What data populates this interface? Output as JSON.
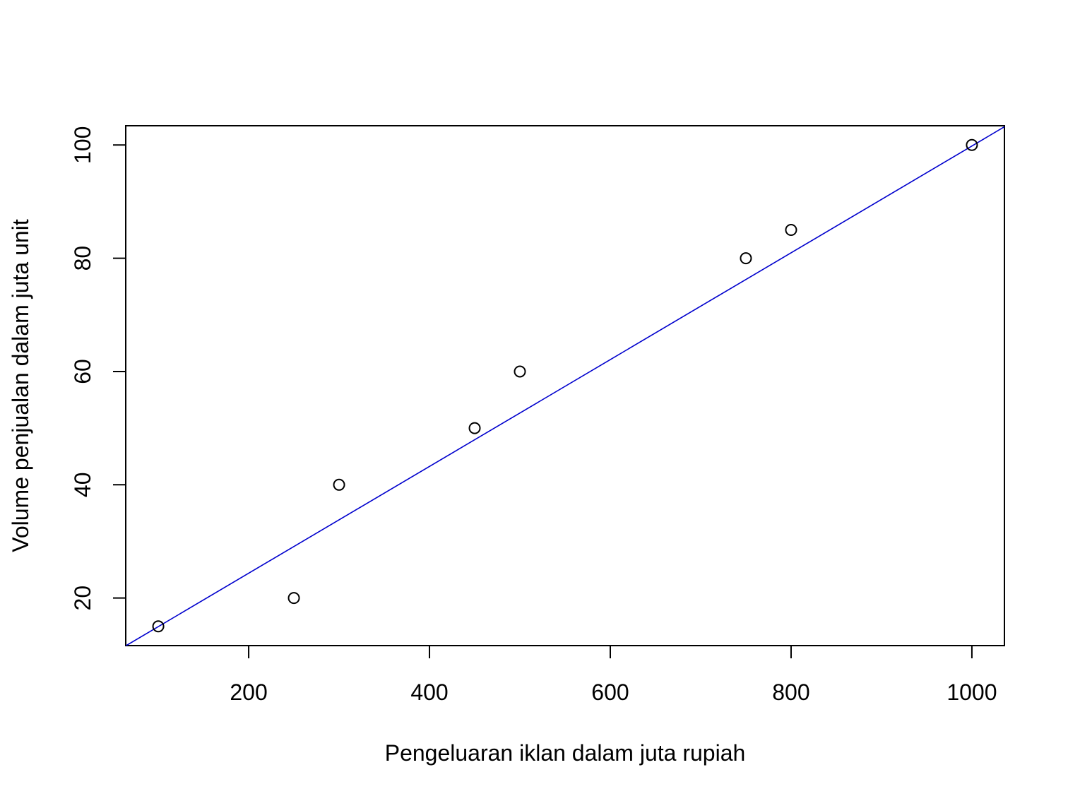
{
  "chart_data": {
    "type": "scatter",
    "title": "",
    "xlabel": "Pengeluaran iklan dalam juta rupiah",
    "ylabel": "Volume penjualan dalam juta unit",
    "xlim": [
      64,
      1036
    ],
    "ylim": [
      11.6,
      103.4
    ],
    "x_ticks": [
      200,
      400,
      600,
      800,
      1000
    ],
    "y_ticks": [
      20,
      40,
      60,
      80,
      100
    ],
    "x_tick_labels": [
      "200",
      "400",
      "600",
      "800",
      "1000"
    ],
    "y_tick_labels": [
      "20",
      "40",
      "60",
      "80",
      "100"
    ],
    "grid": false,
    "legend": "none",
    "points": [
      {
        "x": 100,
        "y": 15
      },
      {
        "x": 250,
        "y": 20
      },
      {
        "x": 300,
        "y": 40
      },
      {
        "x": 450,
        "y": 50
      },
      {
        "x": 500,
        "y": 60
      },
      {
        "x": 750,
        "y": 80
      },
      {
        "x": 800,
        "y": 85
      },
      {
        "x": 1000,
        "y": 100
      }
    ],
    "regression_line": {
      "intercept": 5.52,
      "slope": 0.0943,
      "color": "#0000cd"
    },
    "point_color": "#000000"
  }
}
